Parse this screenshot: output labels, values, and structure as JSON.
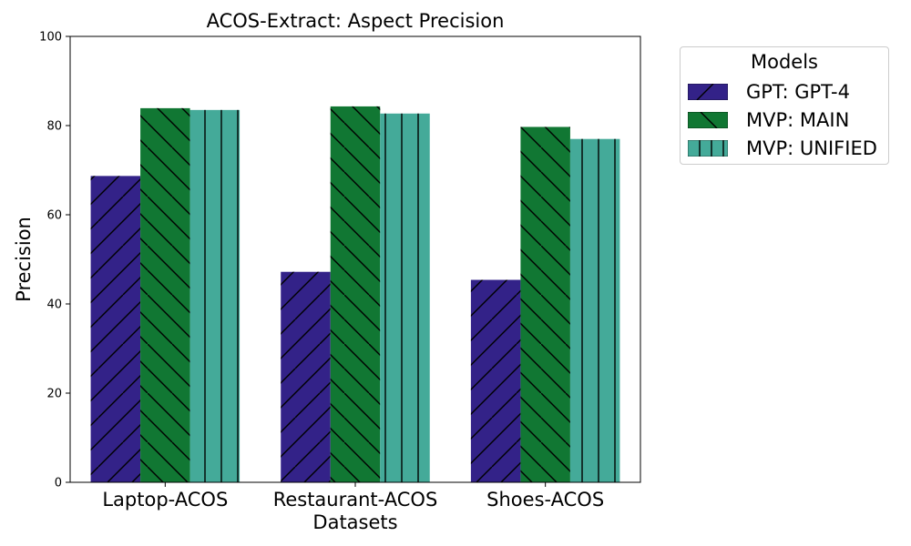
{
  "chart_data": {
    "type": "bar",
    "title": "ACOS-Extract: Aspect Precision",
    "xlabel": "Datasets",
    "ylabel": "Precision",
    "ylim": [
      0,
      100
    ],
    "yticks": [
      "0",
      "20",
      "40",
      "60",
      "80",
      "100"
    ],
    "categories": [
      "Laptop-ACOS",
      "Restaurant-ACOS",
      "Shoes-ACOS"
    ],
    "series": [
      {
        "name": "GPT: GPT-4",
        "color": "#332288",
        "hatch": "forward-slash",
        "values": [
          68.7,
          47.2,
          45.4
        ]
      },
      {
        "name": "MVP: MAIN",
        "color": "#117733",
        "hatch": "back-slash",
        "values": [
          83.9,
          84.3,
          79.7
        ]
      },
      {
        "name": "MVP: UNIFIED",
        "color": "#44AA99",
        "hatch": "vertical",
        "values": [
          83.5,
          82.7,
          77.0
        ]
      }
    ],
    "legend_title": "Models",
    "legend_position": "outside-right",
    "grid": false
  }
}
